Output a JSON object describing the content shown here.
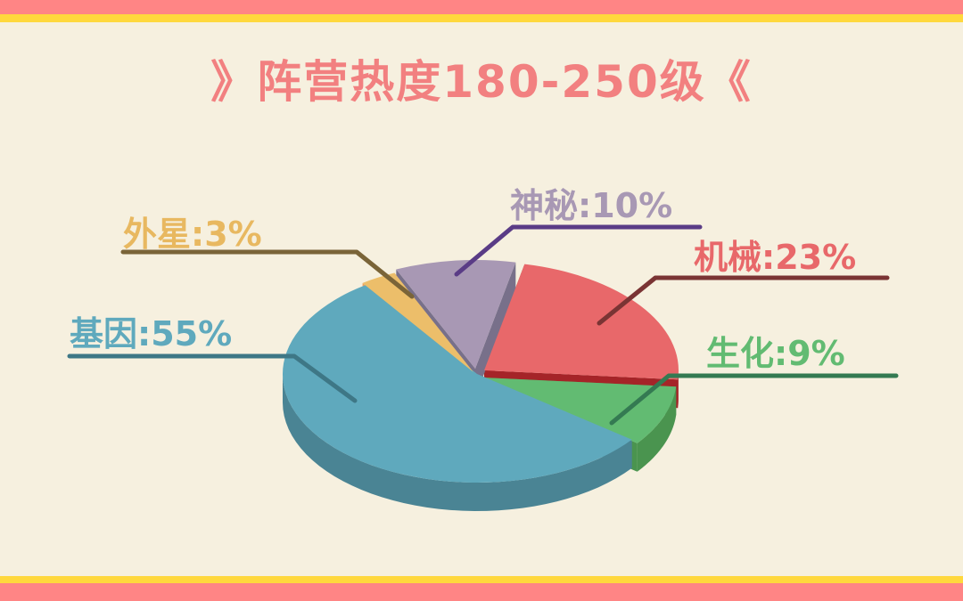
{
  "title": "》阵营热度180-250级《",
  "colors": {
    "border_pink": "#ff8585",
    "border_yellow": "#ffd83d",
    "background": "#f6f0df",
    "title": "#f28080"
  },
  "chart_data": {
    "type": "pie",
    "style": "3d",
    "title": "》阵营热度180-250级《",
    "slices": [
      {
        "name": "机械",
        "value": 23,
        "label": "机械:23%",
        "color": "#e8686a",
        "side": "#a52428",
        "line": "#7a3434"
      },
      {
        "name": "生化",
        "value": 9,
        "label": "生化:9%",
        "color": "#62bb72",
        "side": "#4a944f",
        "line": "#347a52"
      },
      {
        "name": "基因",
        "value": 55,
        "label": "基因:55%",
        "color": "#5fa9bd",
        "side": "#4a8494",
        "line": "#3e7786"
      },
      {
        "name": "外星",
        "value": 3,
        "label": "外星:3%",
        "color": "#ecbe6a",
        "side": "#eda060",
        "line": "#7a6438"
      },
      {
        "name": "神秘",
        "value": 10,
        "label": "神秘:10%",
        "color": "#a898b4",
        "side": "#78708a",
        "line": "#5a3c86"
      }
    ]
  }
}
